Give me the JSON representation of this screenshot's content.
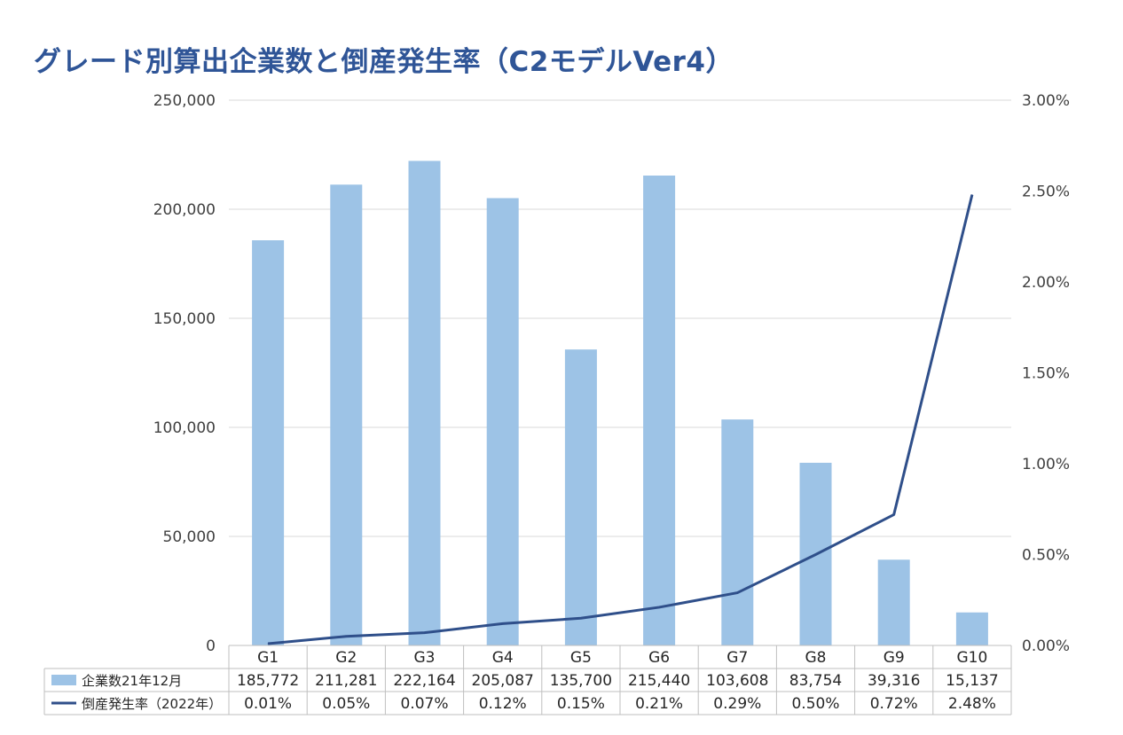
{
  "title": "グレード別算出企業数と倒産発生率（C2モデルVer4）",
  "colors": {
    "title": "#2f5597",
    "bar": "#9dc3e6",
    "line": "#2f4f8a",
    "grid": "#d9d9d9",
    "table_border": "#bfbfbf"
  },
  "chart_data": {
    "type": "bar+line",
    "categories": [
      "G1",
      "G2",
      "G3",
      "G4",
      "G5",
      "G6",
      "G7",
      "G8",
      "G9",
      "G10"
    ],
    "series": [
      {
        "name": "企業数21年12月",
        "type": "bar",
        "axis": "left",
        "values": [
          185772,
          211281,
          222164,
          205087,
          135700,
          215440,
          103608,
          83754,
          39316,
          15137
        ],
        "labels": [
          "185,772",
          "211,281",
          "222,164",
          "205,087",
          "135,700",
          "215,440",
          "103,608",
          "83,754",
          "39,316",
          "15,137"
        ]
      },
      {
        "name": "倒産発生率（2022年）",
        "type": "line",
        "axis": "right",
        "values": [
          0.01,
          0.05,
          0.07,
          0.12,
          0.15,
          0.21,
          0.29,
          0.5,
          0.72,
          2.48
        ],
        "labels": [
          "0.01%",
          "0.05%",
          "0.07%",
          "0.12%",
          "0.15%",
          "0.21%",
          "0.29%",
          "0.50%",
          "0.72%",
          "2.48%"
        ]
      }
    ],
    "y_left": {
      "ylim": [
        0,
        250000
      ],
      "ticks": [
        0,
        50000,
        100000,
        150000,
        200000,
        250000
      ],
      "tick_labels": [
        "0",
        "50,000",
        "100,000",
        "150,000",
        "200,000",
        "250,000"
      ]
    },
    "y_right": {
      "ylim": [
        0,
        3.0
      ],
      "ticks": [
        0,
        0.5,
        1.0,
        1.5,
        2.0,
        2.5,
        3.0
      ],
      "tick_labels": [
        "0.00%",
        "0.50%",
        "1.00%",
        "1.50%",
        "2.00%",
        "2.50%",
        "3.00%"
      ]
    },
    "grid": true,
    "legend": "data-table"
  }
}
